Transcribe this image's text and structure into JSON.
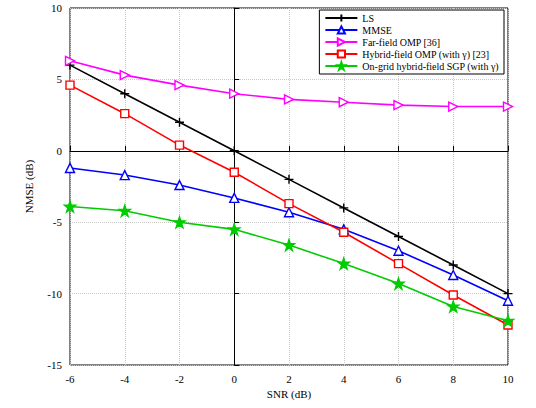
{
  "chart_data": {
    "type": "line",
    "x_label": "SNR (dB)",
    "y_label": "NMSE (dB)",
    "x": [
      -6,
      -4,
      -2,
      0,
      2,
      4,
      6,
      8,
      10
    ],
    "xlim": [
      -6,
      10
    ],
    "xticks": [
      -6,
      -4,
      -2,
      0,
      2,
      4,
      6,
      8,
      10
    ],
    "ylim": [
      -15,
      10
    ],
    "yticks": [
      -15,
      -10,
      -5,
      0,
      5,
      10
    ],
    "grid": true,
    "legend": "upper right",
    "series": [
      {
        "name": "LS",
        "color": "#000000",
        "marker": "plus",
        "values": [
          6,
          4,
          2,
          0,
          -2,
          -4,
          -6,
          -8,
          -10
        ]
      },
      {
        "name": "MMSE",
        "color": "#0000ff",
        "marker": "triangle",
        "values": [
          -1.2,
          -1.7,
          -2.4,
          -3.3,
          -4.3,
          -5.5,
          -7.0,
          -8.7,
          -10.5
        ]
      },
      {
        "name": "Far-field OMP [36]",
        "color": "#ff00ff",
        "marker": "triangle-right",
        "values": [
          6.3,
          5.3,
          4.6,
          4.0,
          3.6,
          3.4,
          3.2,
          3.1,
          3.1
        ]
      },
      {
        "name": "Hybrid-field OMP (with γ) [23]",
        "color": "#ff0000",
        "marker": "square",
        "values": [
          4.6,
          2.6,
          0.4,
          -1.5,
          -3.7,
          -5.7,
          -7.9,
          -10.1,
          -12.2
        ]
      },
      {
        "name": "On-grid hybrid-field SGP (with γ)",
        "color": "#00cc00",
        "marker": "star",
        "values": [
          -3.9,
          -4.2,
          -5.0,
          -5.5,
          -6.6,
          -7.9,
          -9.3,
          -10.9,
          -11.9
        ]
      }
    ]
  }
}
